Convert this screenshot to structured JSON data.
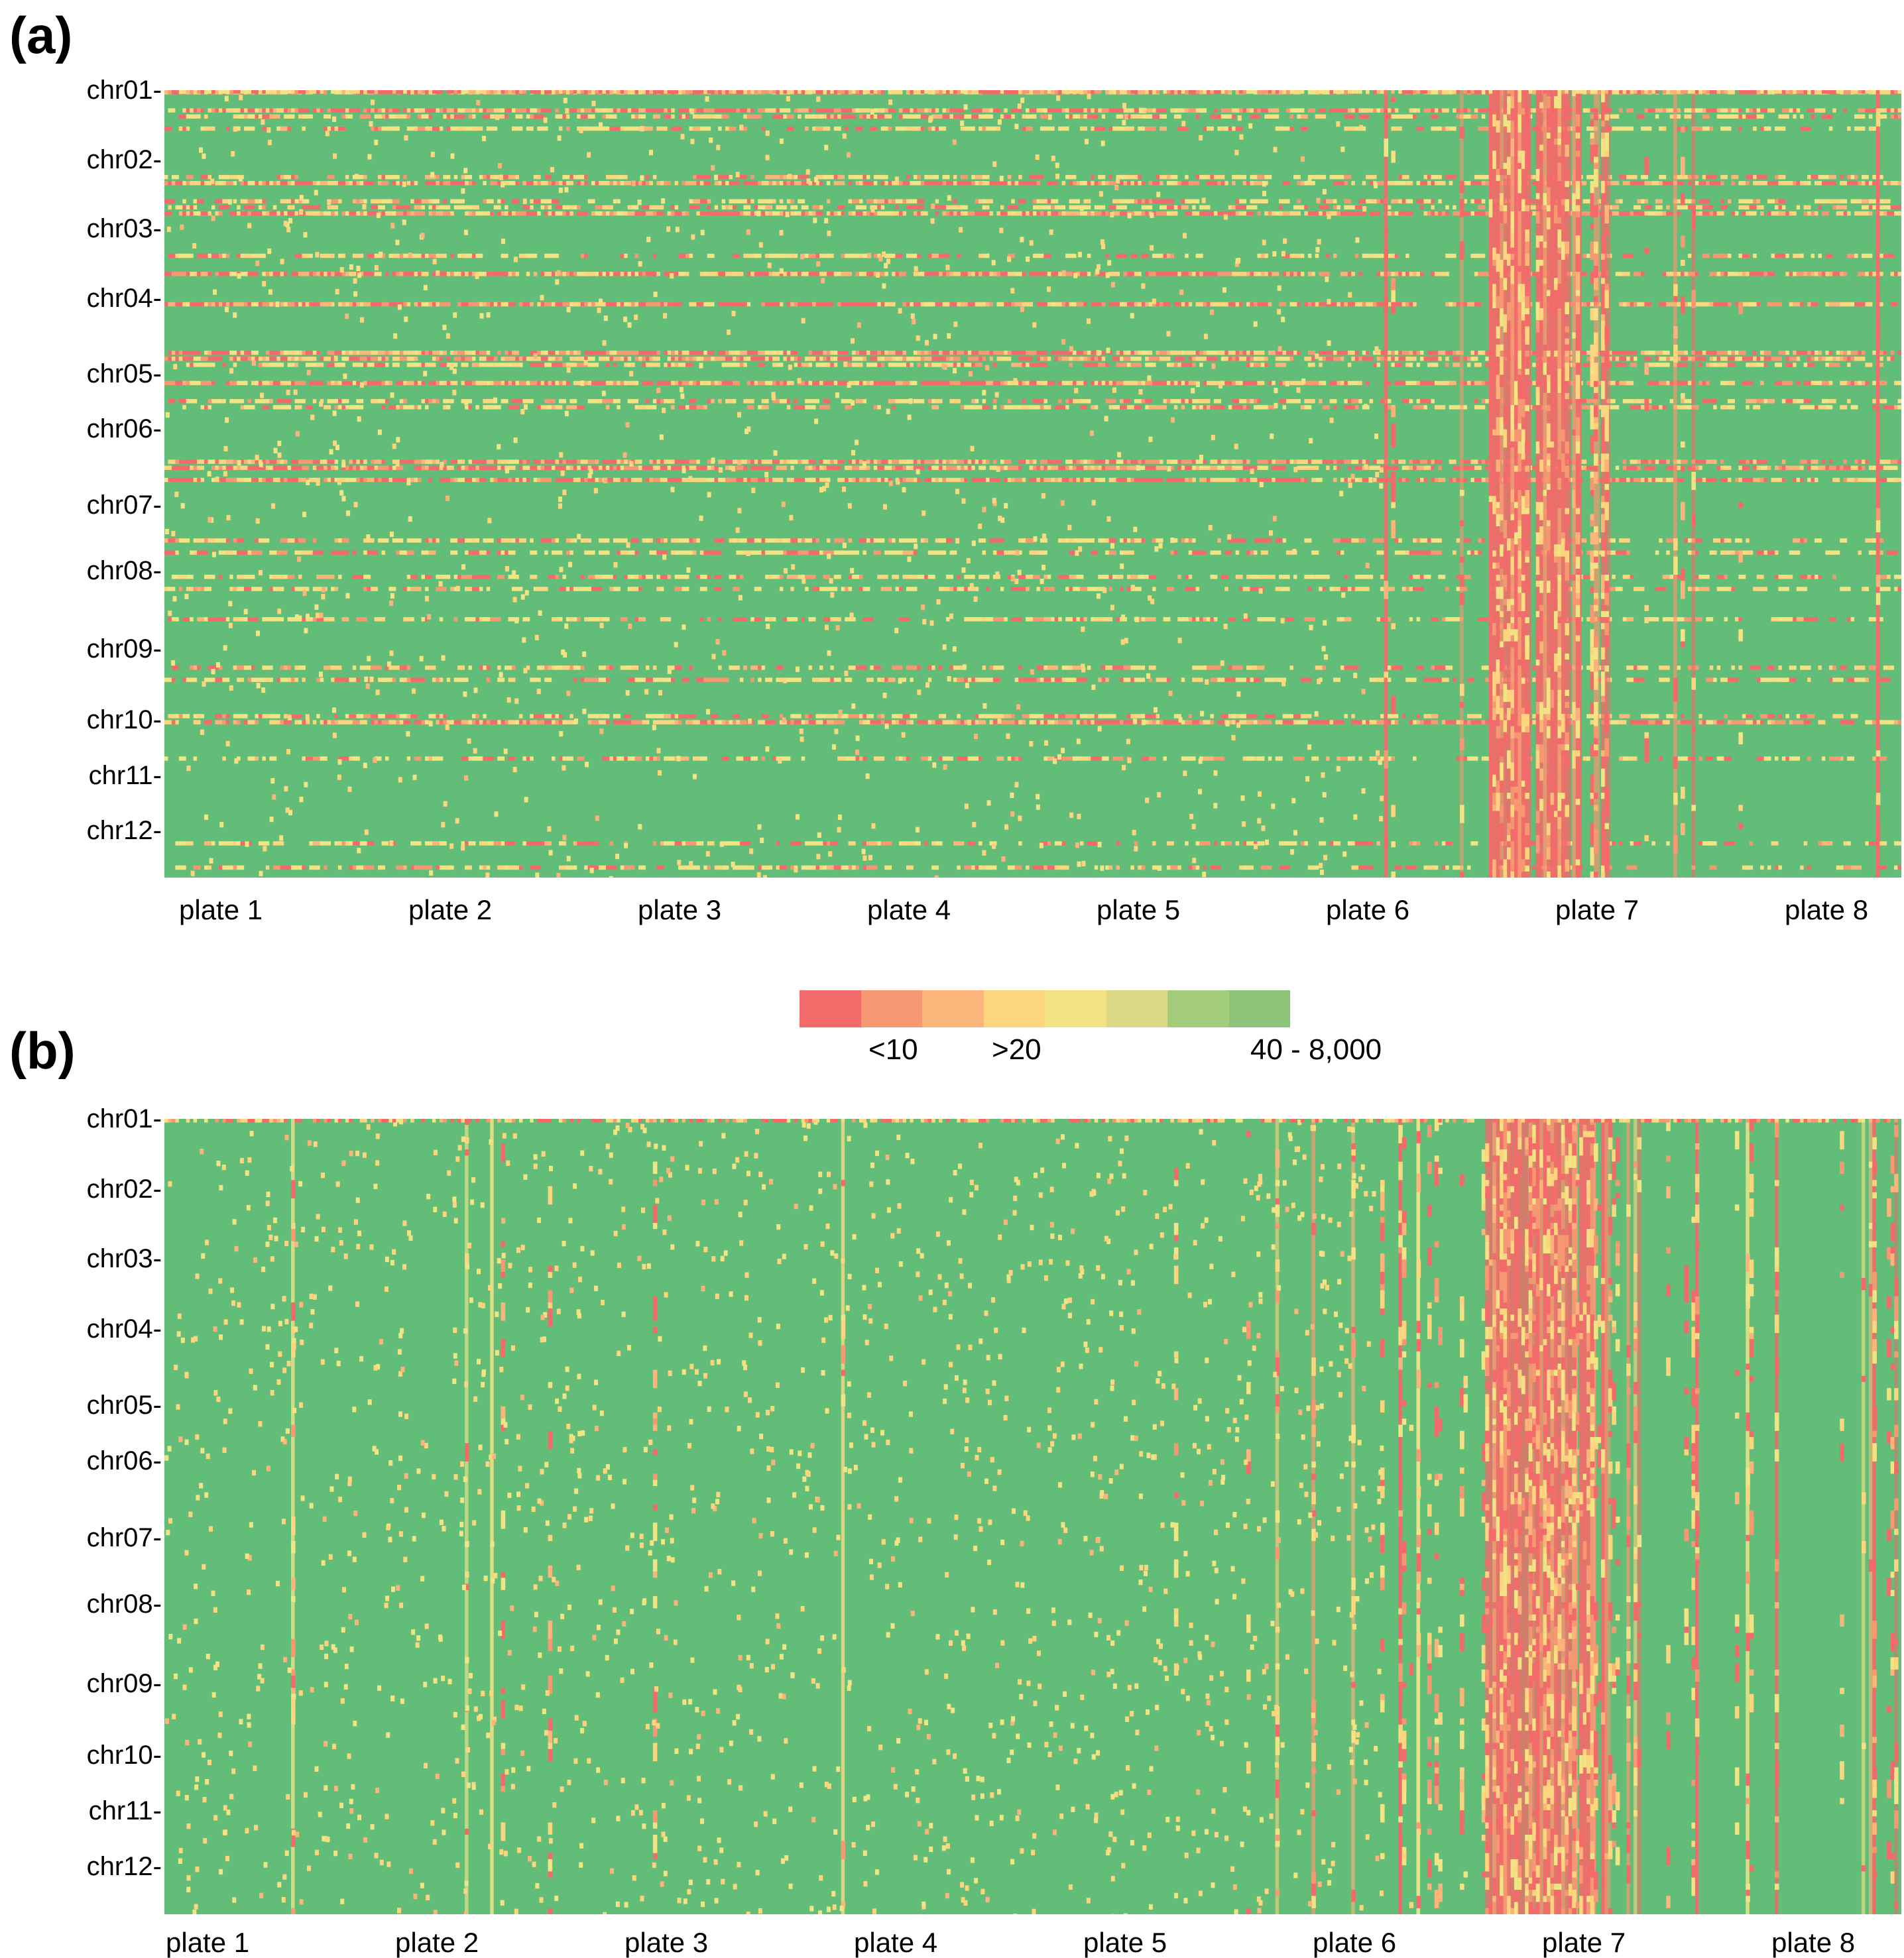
{
  "chart_data": [
    {
      "type": "heatmap",
      "panel": "(a)",
      "y_tick_labels": [
        "chr01-",
        "chr02-",
        "chr03-",
        "chr04-",
        "chr05-",
        "chr06-",
        "chr07-",
        "chr08-",
        "chr09-",
        "chr10-",
        "chr11-",
        "chr12-"
      ],
      "x_tick_labels": [
        "plate 1",
        "plate 2",
        "plate 3",
        "plate 4",
        "plate 5",
        "plate 6",
        "plate 7",
        "plate 8"
      ],
      "color_scale": [
        "#f26a6a",
        "#f69872",
        "#fbb479",
        "#fdd57f",
        "#f2e385",
        "#dcda84",
        "#a3cc7b",
        "#8cc57a"
      ],
      "base_color": "#62bd78"
    },
    {
      "type": "heatmap",
      "panel": "(b)",
      "y_tick_labels": [
        "chr01-",
        "chr02-",
        "chr03-",
        "chr04-",
        "chr05-",
        "chr06-",
        "chr07-",
        "chr08-",
        "chr09-",
        "chr10-",
        "chr11-",
        "chr12-"
      ],
      "x_tick_labels": [
        "plate 1",
        "plate 2",
        "plate 3",
        "plate 4",
        "plate 5",
        "plate 6",
        "plate 7",
        "plate 8"
      ],
      "color_scale": [
        "#f26a6a",
        "#f69872",
        "#fbb479",
        "#fdd57f",
        "#f2e385",
        "#dcda84",
        "#a3cc7b",
        "#8cc57a"
      ],
      "base_color": "#62bd78"
    }
  ],
  "legend": {
    "colors": [
      "#f26a6a",
      "#f69872",
      "#fbb479",
      "#fdd57f",
      "#f2e385",
      "#dcda84",
      "#a3cc7b",
      "#8cc57a"
    ],
    "labels": [
      "<10",
      ">20",
      "40 - 8,000"
    ]
  }
}
